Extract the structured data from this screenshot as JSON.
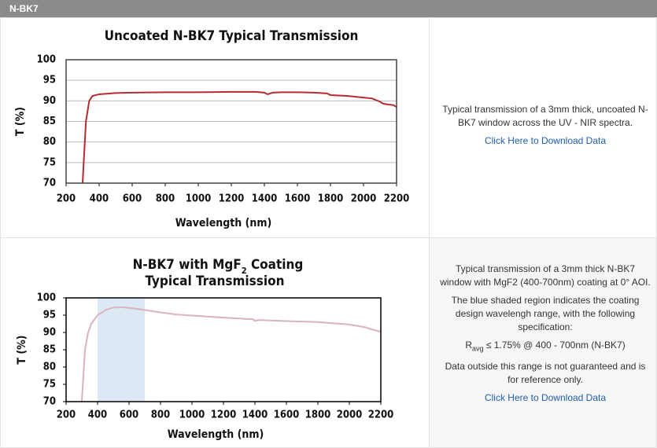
{
  "header": {
    "title": "N-BK7"
  },
  "rows": [
    {
      "description": "Typical transmission of a 3mm thick, uncoated N-BK7 window across the UV - NIR spectra.",
      "link": "Click Here to Download Data"
    },
    {
      "description": "Typical transmission of a 3mm thick N-BK7 window with MgF2 (400-700nm) coating at 0° AOI.",
      "shading_note": "The blue shaded region indicates the coating design wavelengh range, with the following specification:",
      "spec": {
        "symbol": "R",
        "subscript": "avg",
        "text": "≤ 1.75% @ 400 - 700nm (N-BK7)"
      },
      "disclaimer": "Data outside this range is not guaranteed and is for reference only.",
      "link": "Click Here to Download Data"
    }
  ],
  "chart_data": [
    {
      "type": "line",
      "title": {
        "line1": "Uncoated N-BK7 Typical Transmission"
      },
      "x_label": "Wavelength (nm)",
      "y_label": "T (%)",
      "x": [
        300,
        320,
        340,
        360,
        400,
        500,
        600,
        800,
        1000,
        1200,
        1350,
        1400,
        1420,
        1450,
        1500,
        1600,
        1700,
        1780,
        1800,
        1900,
        2000,
        2050,
        2100,
        2120,
        2150,
        2180,
        2200
      ],
      "values": [
        70,
        85,
        90,
        91.2,
        91.6,
        91.9,
        92,
        92.1,
        92.1,
        92.2,
        92.2,
        92,
        91.6,
        92,
        92.1,
        92.1,
        92,
        91.8,
        91.4,
        91.2,
        90.8,
        90.6,
        89.8,
        89.3,
        89.1,
        89,
        88.5
      ],
      "color": "#b52a2f",
      "xlim": [
        200,
        2200
      ],
      "xticks": [
        200,
        400,
        600,
        800,
        1000,
        1200,
        1400,
        1600,
        1800,
        2000,
        2200
      ],
      "ylim": [
        70,
        100
      ],
      "yticks": [
        70,
        75,
        80,
        85,
        90,
        95,
        100
      ],
      "grid": true
    },
    {
      "type": "line",
      "title": {
        "line1": "N-BK7 with MgF",
        "line1_sub": "2",
        "line1_end": " Coating",
        "line2": "Typical Transmission"
      },
      "x_label": "Wavelength (nm)",
      "y_label": "T (%)",
      "x": [
        300,
        320,
        340,
        360,
        400,
        450,
        500,
        550,
        600,
        700,
        800,
        900,
        1000,
        1200,
        1390,
        1400,
        1420,
        1600,
        1800,
        2000,
        2100,
        2150,
        2200
      ],
      "values": [
        70,
        85,
        90,
        92.5,
        95,
        96.5,
        97.2,
        97.3,
        97.1,
        96.5,
        95.8,
        95.2,
        94.9,
        94.3,
        93.8,
        93.3,
        93.6,
        93.3,
        93,
        92.3,
        91.5,
        90.8,
        90.2
      ],
      "color": "#d8b4bc",
      "highlight": [
        400,
        700
      ],
      "highlight_color": "#dce9f5",
      "xlim": [
        200,
        2200
      ],
      "xticks": [
        200,
        400,
        600,
        800,
        1000,
        1200,
        1400,
        1600,
        1800,
        2000,
        2200
      ],
      "ylim": [
        70,
        100
      ],
      "yticks": [
        70,
        75,
        80,
        85,
        90,
        95,
        100
      ],
      "grid": false
    }
  ]
}
